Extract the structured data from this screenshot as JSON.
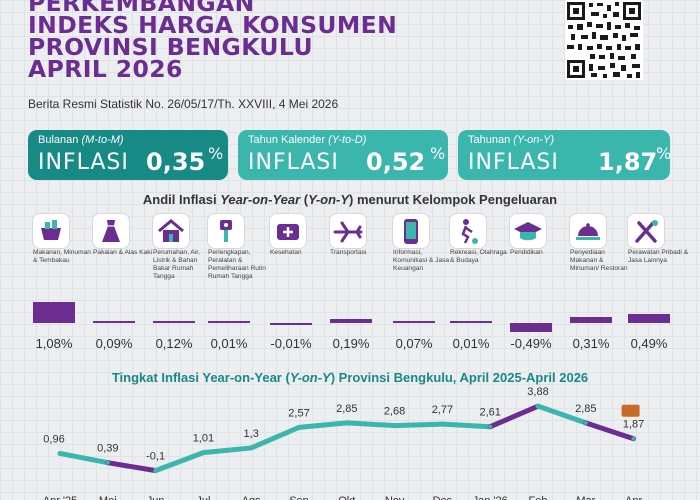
{
  "header": {
    "title_lines": [
      "PERKEMBANGAN",
      "INDEKS HARGA KONSUMEN",
      "PROVINSI BENGKULU",
      "APRIL 2026"
    ],
    "subtitle": "Berita Resmi Statistik No. 26/05/17/Th. XXVIII, 4 Mei 2026"
  },
  "kpis": [
    {
      "label_main": "Bulanan",
      "label_italic": "(M-to-M)",
      "word": "INFLASI",
      "value": "0,35",
      "unit": "%"
    },
    {
      "label_main": "Tahun Kalender",
      "label_italic": "(Y-to-D)",
      "word": "INFLASI",
      "value": "0,52",
      "unit": "%"
    },
    {
      "label_main": "Tahunan",
      "label_italic": "(Y-on-Y)",
      "word": "INFLASI",
      "value": "1,87",
      "unit": "%"
    }
  ],
  "andil": {
    "title_1": "Andil Inflasi ",
    "title_2": "Year-on-Year",
    "title_3": " (",
    "title_4": "Y-on-Y",
    "title_5": ") menurut Kelompok Pengeluaran",
    "color": "#6b2d91",
    "categories": [
      {
        "icon": "shopping-basket-icon",
        "label": "Makanan, Minuman & Tembakau",
        "value": 1.08,
        "display": "1,08%"
      },
      {
        "icon": "dress-icon",
        "label": "Pakaian & Alas Kaki",
        "value": 0.09,
        "display": "0,09%"
      },
      {
        "icon": "house-icon",
        "label": "Perumahan, Air, Listrik & Bahan Bakar Rumah Tangga",
        "value": 0.12,
        "display": "0,12%"
      },
      {
        "icon": "household-tool-icon",
        "label": "Perlengkapan, Peralatan & Pemeliharaan Rutin Rumah Tangga",
        "value": 0.01,
        "display": "0,01%"
      },
      {
        "icon": "first-aid-kit-icon",
        "label": "Kesehatan",
        "value": -0.01,
        "display": "-0,01%"
      },
      {
        "icon": "airplane-icon",
        "label": "Transportasi",
        "value": 0.19,
        "display": "0,19%"
      },
      {
        "icon": "smartphone-icon",
        "label": "Informasi, Komunikasi & Jasa Keuangan",
        "value": 0.07,
        "display": "0,07%"
      },
      {
        "icon": "football-player-icon",
        "label": "Rekreasi, Olahraga & Budaya",
        "value": 0.01,
        "display": "0,01%"
      },
      {
        "icon": "graduation-cap-icon",
        "label": "Pendidikan",
        "value": -0.49,
        "display": "-0,49%"
      },
      {
        "icon": "food-tray-icon",
        "label": "Penyediaan Makanan & Minuman/ Restoran",
        "value": 0.31,
        "display": "0,31%"
      },
      {
        "icon": "tools-icon",
        "label": "Perawatan Pribadi & Jasa Lainnya",
        "value": 0.49,
        "display": "0,49%"
      }
    ]
  },
  "trend": {
    "title_1": "Tingkat Inflasi Year-on-Year (",
    "title_2": "Y-on-Y",
    "title_3": ") Provinsi Bengkulu, April 2025-April 2026",
    "colors": {
      "teal": "#3bb6ad",
      "purple": "#6b2d91"
    }
  },
  "chart_data": {
    "type": "line",
    "title": "Tingkat Inflasi Year-on-Year (Y-on-Y) Provinsi Bengkulu, April 2025-April 2026",
    "categories": [
      "Apr '25",
      "Mei",
      "Jun",
      "Jul",
      "Ags",
      "Sep",
      "Okt",
      "Nov",
      "Des",
      "Jan '26",
      "Feb",
      "Mar",
      "Apr"
    ],
    "values": [
      0.96,
      0.39,
      -0.1,
      1.01,
      1.3,
      2.57,
      2.85,
      2.68,
      2.77,
      2.61,
      3.88,
      2.85,
      1.87
    ],
    "labels": [
      "0,96",
      "0,39",
      "-0,1",
      "1,01",
      "1,3",
      "2,57",
      "2,85",
      "2,68",
      "2,77",
      "2,61",
      "3,88",
      "2,85",
      "1,87"
    ],
    "segment_colors": [
      "teal",
      "purple",
      "teal",
      "teal",
      "teal",
      "teal",
      "teal",
      "teal",
      "teal",
      "purple",
      "teal",
      "purple"
    ]
  }
}
